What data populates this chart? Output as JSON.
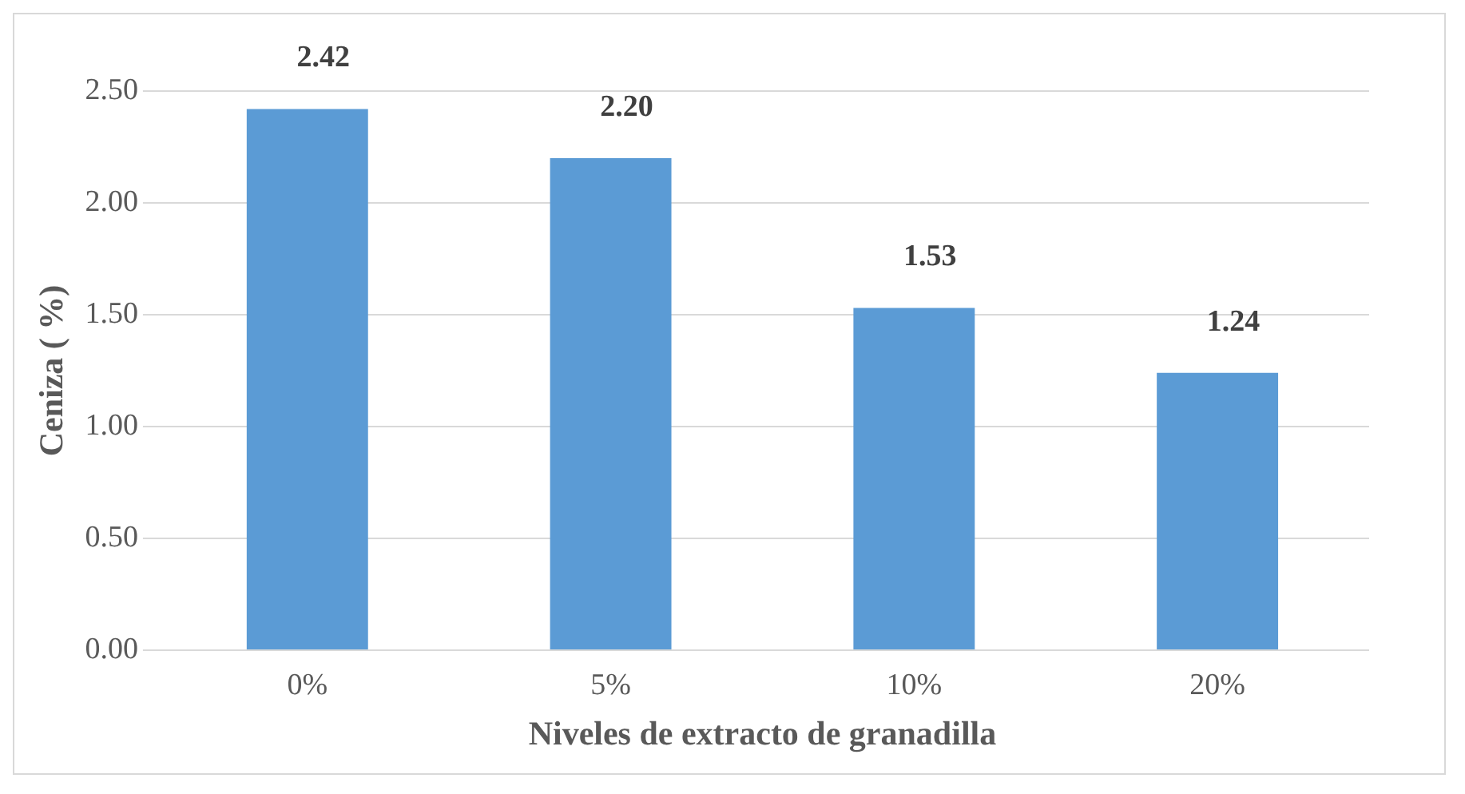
{
  "chart_data": {
    "type": "bar",
    "xlabel": "Niveles de extracto de granadilla",
    "ylabel": "Ceniza ( %)",
    "categories": [
      "0%",
      "5%",
      "10%",
      "20%"
    ],
    "values": [
      2.42,
      2.2,
      1.53,
      1.24
    ],
    "value_labels": [
      "2.42",
      "2.20",
      "1.53",
      "1.24"
    ],
    "color": "#5b9bd5",
    "ylim": [
      0,
      2.5
    ],
    "yticks": [
      {
        "value": 0,
        "label": "0.00"
      },
      {
        "value": 0.5,
        "label": "0.50"
      },
      {
        "value": 1,
        "label": "1.00"
      },
      {
        "value": 1.5,
        "label": "1.50"
      },
      {
        "value": 2,
        "label": "2.00"
      },
      {
        "value": 2.5,
        "label": "2.50"
      }
    ],
    "grid": "y",
    "legend": false
  }
}
